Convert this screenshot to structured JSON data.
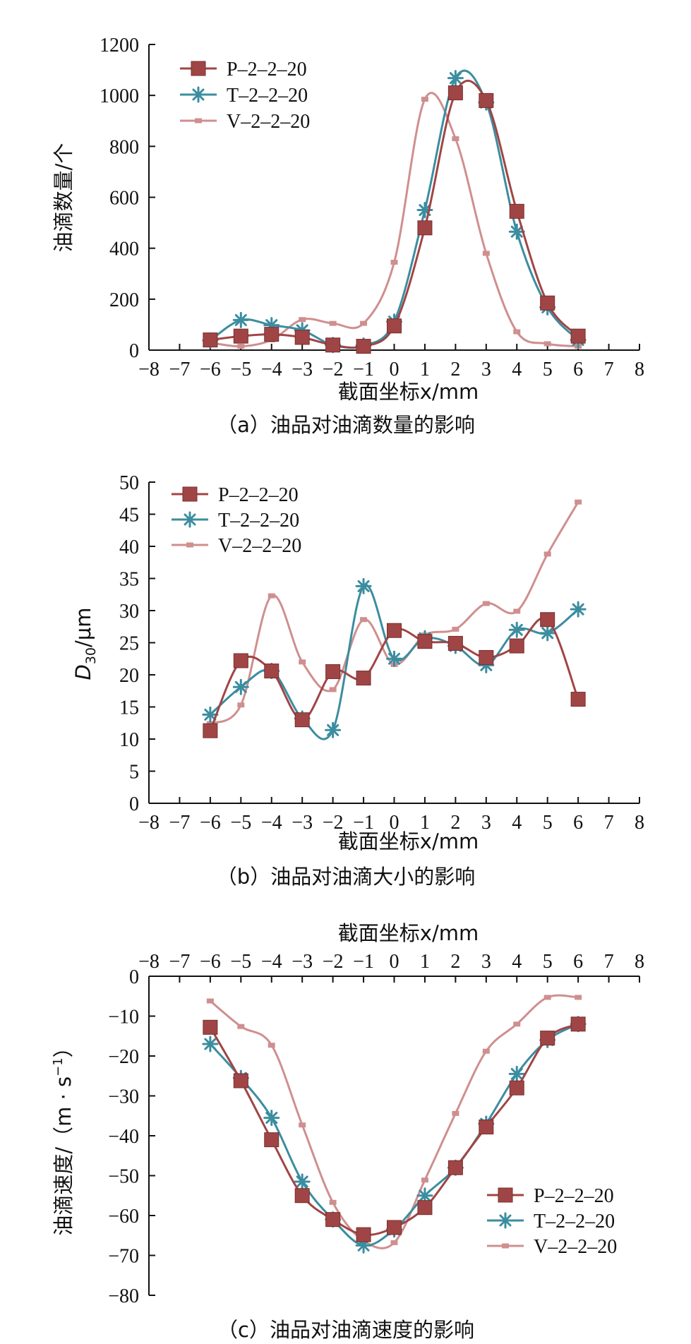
{
  "colors": {
    "P": "#a04545",
    "T": "#3b8da0",
    "V": "#cf8f8f",
    "axis": "#111111"
  },
  "chart_data": [
    {
      "type": "line",
      "caption": "（a）油品对油滴数量的影响",
      "xlabel": "截面坐标x/mm",
      "ylabel": "油滴数量/个",
      "xlim": [
        -8,
        8
      ],
      "ylim": [
        0,
        1200
      ],
      "xticks": [
        -8,
        -7,
        -6,
        -5,
        -4,
        -3,
        -2,
        -1,
        0,
        1,
        2,
        3,
        4,
        5,
        6,
        7,
        8
      ],
      "yticks": [
        0,
        200,
        400,
        600,
        800,
        1000,
        1200
      ],
      "legend_position": "top-left",
      "series": [
        {
          "name": "P–2–2–20",
          "marker": "square",
          "x": [
            -6,
            -5,
            -4,
            -3,
            -2,
            -1,
            0,
            1,
            2,
            3,
            4,
            5,
            6
          ],
          "y": [
            40,
            55,
            62,
            50,
            20,
            15,
            95,
            480,
            1010,
            980,
            545,
            185,
            55
          ]
        },
        {
          "name": "T–2–2–20",
          "marker": "asterisk",
          "x": [
            -6,
            -5,
            -4,
            -3,
            -2,
            -1,
            0,
            1,
            2,
            3,
            4,
            5,
            6
          ],
          "y": [
            38,
            118,
            98,
            78,
            20,
            18,
            112,
            550,
            1068,
            972,
            465,
            168,
            40
          ]
        },
        {
          "name": "V–2–2–20",
          "marker": "small-square",
          "x": [
            -6,
            -5,
            -4,
            -3,
            -2,
            -1,
            0,
            1,
            2,
            3,
            4,
            5,
            6
          ],
          "y": [
            30,
            15,
            40,
            120,
            105,
            105,
            345,
            985,
            830,
            380,
            72,
            25,
            15
          ]
        }
      ]
    },
    {
      "type": "line",
      "caption": "（b）油品对油滴大小的影响",
      "xlabel": "截面坐标x/mm",
      "ylabel": "D30/μm",
      "ylabel_main": "D",
      "ylabel_sub": "30",
      "ylabel_unit": "/μm",
      "xlim": [
        -8,
        8
      ],
      "ylim": [
        0,
        50
      ],
      "xticks": [
        -8,
        -7,
        -6,
        -5,
        -4,
        -3,
        -2,
        -1,
        0,
        1,
        2,
        3,
        4,
        5,
        6,
        7,
        8
      ],
      "yticks": [
        0,
        5,
        10,
        15,
        20,
        25,
        30,
        35,
        40,
        45,
        50
      ],
      "legend_position": "top-left",
      "series": [
        {
          "name": "P–2–2–20",
          "marker": "square",
          "x": [
            -6,
            -5,
            -4,
            -3,
            -2,
            -1,
            0,
            1,
            2,
            3,
            4,
            5,
            6
          ],
          "y": [
            11.3,
            22.2,
            20.6,
            13.0,
            20.5,
            19.5,
            26.9,
            25.2,
            24.9,
            22.7,
            24.5,
            28.6,
            16.2
          ]
        },
        {
          "name": "T–2–2–20",
          "marker": "asterisk",
          "x": [
            -6,
            -5,
            -4,
            -3,
            -2,
            -1,
            0,
            1,
            2,
            3,
            4,
            5,
            6
          ],
          "y": [
            13.8,
            18.1,
            20.6,
            13.2,
            11.4,
            33.8,
            22.5,
            25.7,
            24.5,
            21.5,
            27.0,
            26.5,
            30.2
          ]
        },
        {
          "name": "V–2–2–20",
          "marker": "small-square",
          "x": [
            -6,
            -5,
            -4,
            -3,
            -2,
            -1,
            0,
            1,
            2,
            3,
            4,
            5,
            6
          ],
          "y": [
            12.4,
            15.3,
            32.3,
            22.0,
            17.7,
            28.6,
            21.6,
            26.2,
            27.1,
            31.1,
            29.9,
            38.8,
            46.9
          ]
        }
      ]
    },
    {
      "type": "line",
      "caption": "（c）油品对油滴速度的影响",
      "xlabel": "截面坐标x/mm",
      "ylabel": "油滴速度/（m · s⁻¹）",
      "ylabel_main": "油滴速度/（m · s",
      "ylabel_sup": "−1",
      "ylabel_tail": "）",
      "xaxis_position": "top",
      "xlim": [
        -8,
        8
      ],
      "ylim": [
        -80,
        0
      ],
      "xticks": [
        -8,
        -7,
        -6,
        -5,
        -4,
        -3,
        -2,
        -1,
        0,
        1,
        2,
        3,
        4,
        5,
        6,
        7,
        8
      ],
      "yticks": [
        0,
        -10,
        -20,
        -30,
        -40,
        -50,
        -60,
        -70,
        -80
      ],
      "legend_position": "bottom-right",
      "series": [
        {
          "name": "P–2–2–20",
          "marker": "square",
          "x": [
            -6,
            -5,
            -4,
            -3,
            -2,
            -1,
            0,
            1,
            2,
            3,
            4,
            5,
            6
          ],
          "y": [
            -12.8,
            -26.2,
            -41.0,
            -55.0,
            -61.0,
            -64.8,
            -63.0,
            -58.0,
            -48.0,
            -37.8,
            -28.0,
            -15.5,
            -12.0
          ]
        },
        {
          "name": "T–2–2–20",
          "marker": "asterisk",
          "x": [
            -6,
            -5,
            -4,
            -3,
            -2,
            -1,
            0,
            1,
            2,
            3,
            4,
            5,
            6
          ],
          "y": [
            -17.0,
            -25.5,
            -35.5,
            -51.5,
            -61.0,
            -67.5,
            -63.5,
            -55.0,
            -48.0,
            -37.0,
            -24.5,
            -16.0,
            -12.0
          ]
        },
        {
          "name": "V–2–2–20",
          "marker": "small-square",
          "x": [
            -6,
            -5,
            -4,
            -3,
            -2,
            -1,
            0,
            1,
            2,
            3,
            4,
            5,
            6
          ],
          "y": [
            -6.2,
            -12.6,
            -17.3,
            -37.3,
            -56.7,
            -66.3,
            -66.8,
            -51.1,
            -34.4,
            -18.8,
            -12.0,
            -5.3,
            -5.3
          ]
        }
      ]
    }
  ]
}
